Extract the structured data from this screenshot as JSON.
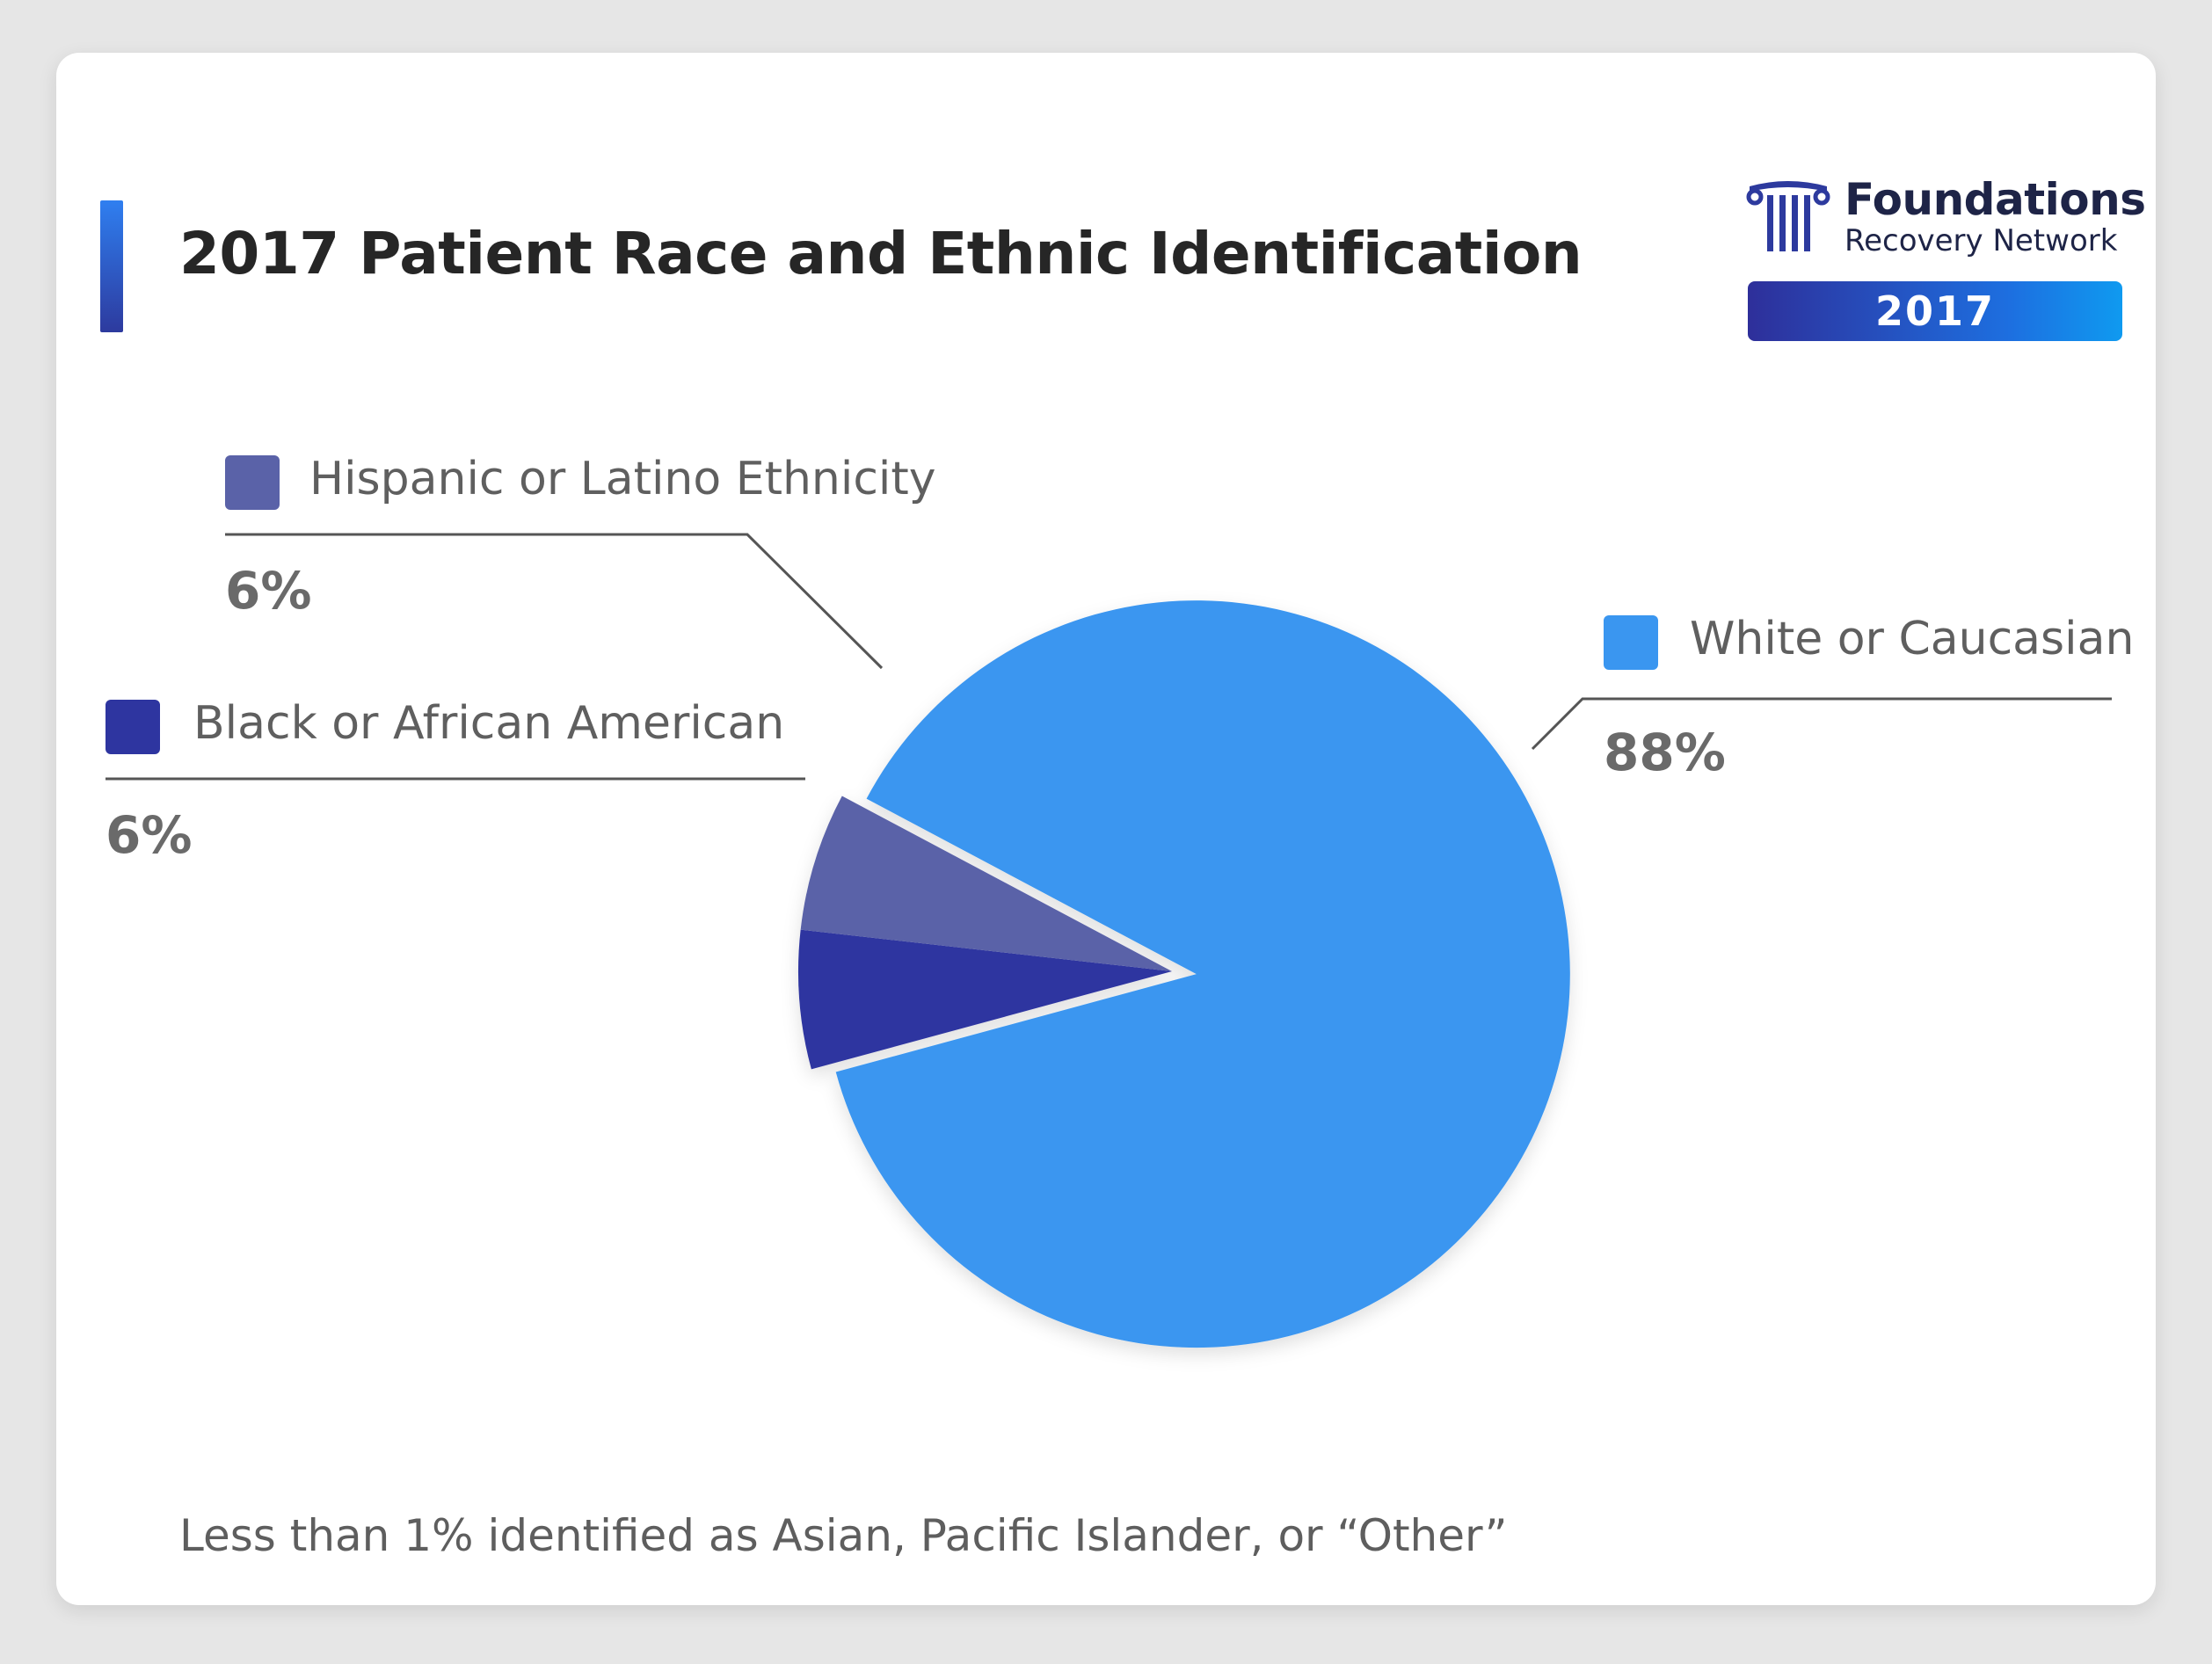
{
  "title": "2017 Patient Race and Ethnic Identification",
  "logo": {
    "name": "Foundations",
    "subtitle": "Recovery Network",
    "year": "2017"
  },
  "footnote": "Less than 1% identified as Asian, Pacific Islander, or “Other”",
  "colors": {
    "white": "#3a96f0",
    "hispanic": "#5a62a8",
    "black": "#2e35a0",
    "logo": "#2d3a9e"
  },
  "chart_data": {
    "type": "pie",
    "slices": [
      {
        "label": "White or Caucasian",
        "value": 88,
        "display": "88%",
        "color": "#3a96f0",
        "exploded": true
      },
      {
        "label": "Black or African American",
        "value": 6,
        "display": "6%",
        "color": "#2e35a0",
        "exploded": false
      },
      {
        "label": "Hispanic or Latino Ethnicity",
        "value": 6,
        "display": "6%",
        "color": "#5a62a8",
        "exploded": false
      }
    ]
  }
}
